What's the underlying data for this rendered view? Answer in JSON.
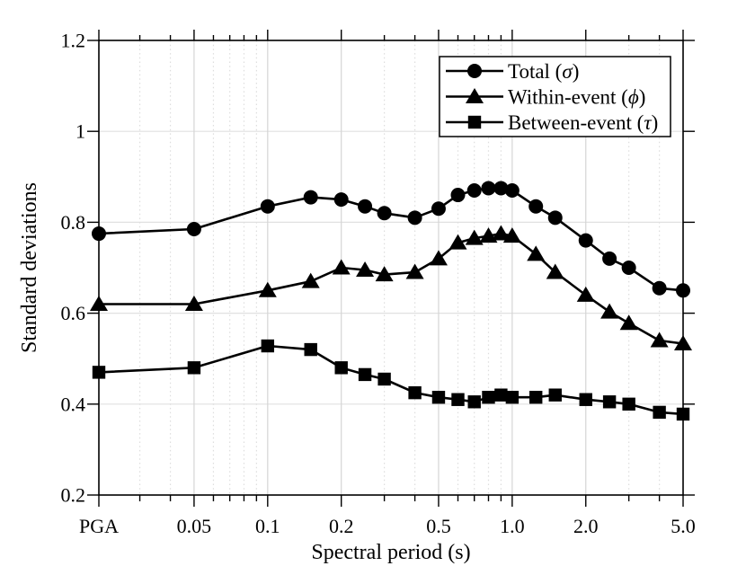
{
  "figure": {
    "background": "#ffffff",
    "axis_color": "#000000",
    "grid_major_color": "#d5d5d5",
    "grid_minor_color": "#dddddd",
    "grid_horizontal_color": "#e0e0e0"
  },
  "chart_data": {
    "type": "line",
    "title": "",
    "xlabel": "Spectral period (s)",
    "ylabel": "Standard deviations",
    "x_scale": "log",
    "xlim": [
      0.0204,
      5.0
    ],
    "ylim": [
      0.2,
      1.2
    ],
    "grid": true,
    "legend_position": "top-right",
    "x_major_ticks": [
      {
        "label": "PGA",
        "t": 0.0204
      },
      {
        "label": "0.05",
        "t": 0.05
      },
      {
        "label": "0.1",
        "t": 0.1
      },
      {
        "label": "0.2",
        "t": 0.2
      },
      {
        "label": "0.5",
        "t": 0.5
      },
      {
        "label": "1.0",
        "t": 1.0
      },
      {
        "label": "2.0",
        "t": 2.0
      },
      {
        "label": "5.0",
        "t": 5.0
      }
    ],
    "x_minor_ticks": [
      0.03,
      0.04,
      0.06,
      0.07,
      0.08,
      0.09,
      0.3,
      0.4,
      0.6,
      0.7,
      0.8,
      0.9,
      3.0,
      4.0
    ],
    "y_ticks": [
      {
        "label": "0.2",
        "v": 0.2
      },
      {
        "label": "0.4",
        "v": 0.4
      },
      {
        "label": "0.6",
        "v": 0.6
      },
      {
        "label": "0.8",
        "v": 0.8
      },
      {
        "label": "1",
        "v": 1.0
      },
      {
        "label": "1.2",
        "v": 1.2
      }
    ],
    "period_labels": [
      "PGA",
      "0.05",
      "0.1",
      "0.15",
      "0.2",
      "0.25",
      "0.3",
      "0.4",
      "0.5",
      "0.6",
      "0.7",
      "0.8",
      "0.9",
      "1.0",
      "1.25",
      "1.5",
      "2.0",
      "2.5",
      "3.0",
      "4.0",
      "5.0"
    ],
    "x": [
      0.0204,
      0.05,
      0.1,
      0.15,
      0.2,
      0.25,
      0.3,
      0.4,
      0.5,
      0.6,
      0.7,
      0.8,
      0.9,
      1.0,
      1.25,
      1.5,
      2.0,
      2.5,
      3.0,
      4.0,
      5.0
    ],
    "series": [
      {
        "name": "total",
        "legend_parts": [
          "Total (",
          "σ",
          ")"
        ],
        "marker": "circle",
        "color": "#000000",
        "values": [
          0.775,
          0.785,
          0.835,
          0.855,
          0.85,
          0.835,
          0.82,
          0.81,
          0.83,
          0.86,
          0.87,
          0.875,
          0.875,
          0.87,
          0.835,
          0.81,
          0.76,
          0.72,
          0.7,
          0.655,
          0.65
        ]
      },
      {
        "name": "within-event",
        "legend_parts": [
          "Within-event (",
          "ϕ",
          ")"
        ],
        "marker": "triangle",
        "color": "#000000",
        "values": [
          0.62,
          0.62,
          0.65,
          0.67,
          0.7,
          0.695,
          0.685,
          0.69,
          0.72,
          0.755,
          0.765,
          0.77,
          0.775,
          0.77,
          0.73,
          0.69,
          0.64,
          0.603,
          0.578,
          0.54,
          0.533
        ]
      },
      {
        "name": "between-event",
        "legend_parts": [
          "Between-event (",
          "τ",
          ")"
        ],
        "marker": "square",
        "color": "#000000",
        "values": [
          0.47,
          0.48,
          0.528,
          0.52,
          0.48,
          0.465,
          0.455,
          0.425,
          0.415,
          0.41,
          0.405,
          0.415,
          0.42,
          0.415,
          0.415,
          0.42,
          0.41,
          0.405,
          0.4,
          0.382,
          0.378
        ]
      }
    ]
  }
}
